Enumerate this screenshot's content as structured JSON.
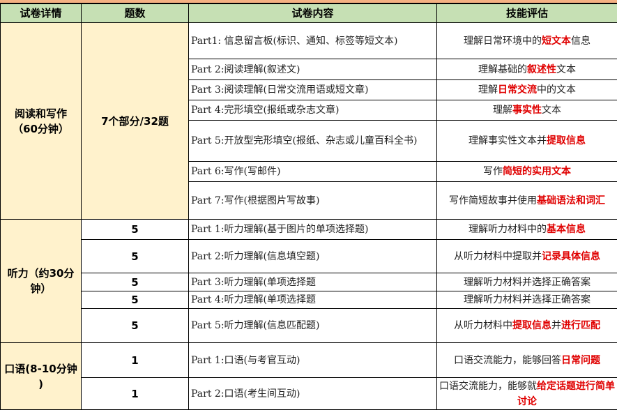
{
  "colors": {
    "header_bg": "#c6e0b4",
    "section_bg": "#fff2cc",
    "highlight": "#e00000",
    "top_band": "#f4b183"
  },
  "header": [
    "试卷详情",
    "题数",
    "试卷内容",
    "技能评估"
  ],
  "sections": [
    {
      "name": "阅读和写作（60分钟）",
      "count": "7个部分/32题",
      "rows": [
        {
          "content": "Part1: 信息留言板(标识、通知、标签等短文本)",
          "skill": [
            {
              "t": "理解日常环境中的"
            },
            {
              "t": "短文本",
              "em": true
            },
            {
              "t": "信息"
            }
          ],
          "h": 52
        },
        {
          "content": "Part 2:阅读理解(叙述文)",
          "skill": [
            {
              "t": "理解基础的"
            },
            {
              "t": "叙述性",
              "em": true
            },
            {
              "t": "文本"
            }
          ],
          "h": 30
        },
        {
          "content": "Part 3:阅读理解(日常交流用语或短文章)",
          "skill": [
            {
              "t": "理解"
            },
            {
              "t": "日常交流",
              "em": true
            },
            {
              "t": "中的文本"
            }
          ],
          "h": 29
        },
        {
          "content": "Part 4:完形填空(报纸或杂志文章)",
          "skill": [
            {
              "t": "理解"
            },
            {
              "t": "事实性",
              "em": true
            },
            {
              "t": "文本"
            }
          ],
          "h": 29
        },
        {
          "content": "Part 5:开放型完形填空(报纸、杂志或儿童百科全书)",
          "skill": [
            {
              "t": "理解事实性文本并"
            },
            {
              "t": "提取信息",
              "em": true
            }
          ],
          "h": 59
        },
        {
          "content": "Part 6:写作(写邮件)",
          "skill": [
            {
              "t": "写作"
            },
            {
              "t": "简短的实用文本",
              "em": true
            }
          ],
          "h": 29
        },
        {
          "content": "Part 7:写作(根据图片写故事)",
          "skill": [
            {
              "t": "写作简短故事并使用"
            },
            {
              "t": "基础语法和词汇",
              "em": true
            }
          ],
          "h": 54
        }
      ]
    },
    {
      "name": "听力（约30分钟）",
      "rows": [
        {
          "count": "5",
          "content": "Part 1:听力理解(基于图片的单项选择题)",
          "skill": [
            {
              "t": "理解听力材料中的"
            },
            {
              "t": "基本信息",
              "em": true
            }
          ],
          "h": 29
        },
        {
          "count": "5",
          "content": "Part 2:听力理解(信息填空题)",
          "skill": [
            {
              "t": "从听力材料中提取并"
            },
            {
              "t": "记录具体信息",
              "em": true
            }
          ],
          "h": 48
        },
        {
          "count": "5",
          "content": "Part 3:听力理解(单项选择题",
          "skill": [
            {
              "t": "理解听力材料并选择正确答案"
            }
          ],
          "h": 26
        },
        {
          "count": "5",
          "content": "Part 4:听力理解(单项选择题",
          "skill": [
            {
              "t": "理解听力材料并选择正确答案"
            }
          ],
          "h": 25
        },
        {
          "count": "5",
          "content": "Part 5:听力理解(信息匹配题)",
          "skill": [
            {
              "t": "从听力材料中"
            },
            {
              "t": "提取信息",
              "em": true
            },
            {
              "t": "并"
            },
            {
              "t": "进行匹配",
              "em": true
            }
          ],
          "h": 49
        }
      ]
    },
    {
      "name": "口语(8-10分钟 )",
      "rows": [
        {
          "count": "1",
          "content": "Part 1:口语(与考官互动)",
          "skill": [
            {
              "t": "口语交流能力，能够回答"
            },
            {
              "t": "日常问题",
              "em": true
            }
          ],
          "h": 50
        },
        {
          "count": "1",
          "content": "Part 2:口语(考生间互动)",
          "skill": [
            {
              "t": "口语交流能力，能够就"
            },
            {
              "t": "给定话题进行简单讨论",
              "em": true
            }
          ],
          "h": 46
        }
      ]
    }
  ]
}
